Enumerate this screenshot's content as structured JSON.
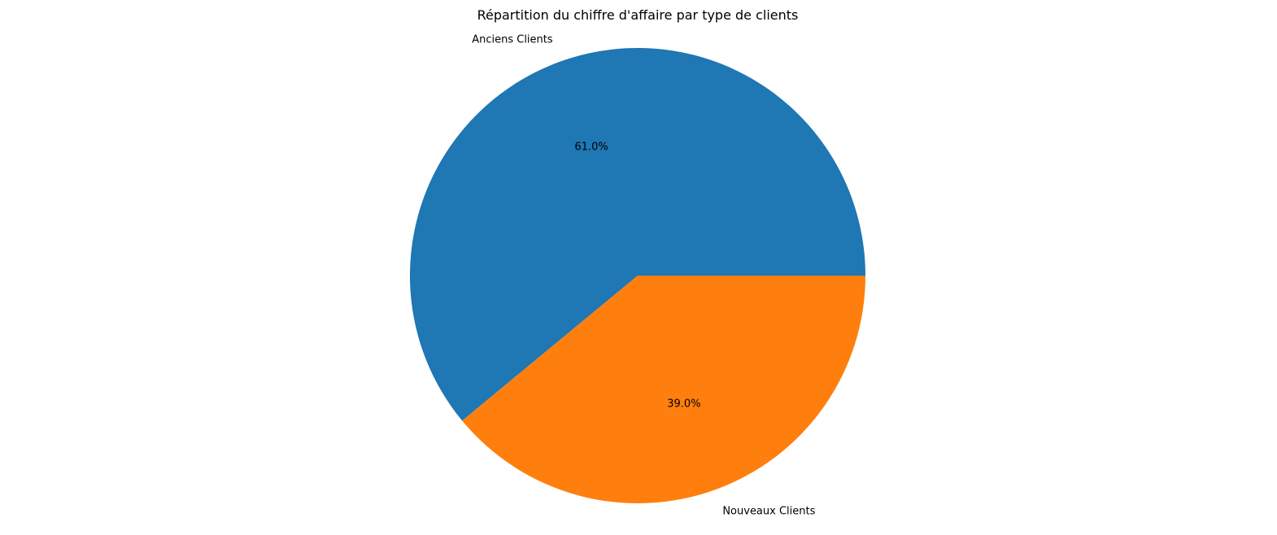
{
  "chart_data": {
    "type": "pie",
    "title": "Répartition du chiffre d'affaire par type de clients",
    "categories": [
      "Anciens Clients",
      "Nouveaux Clients"
    ],
    "values": [
      61.0,
      39.0
    ],
    "percent_labels": [
      "61.0%",
      "39.0%"
    ],
    "colors": [
      "#1f77b4",
      "#ff7f0e"
    ],
    "start_angle_deg": 0,
    "direction": "counterclockwise",
    "legend": "none"
  }
}
